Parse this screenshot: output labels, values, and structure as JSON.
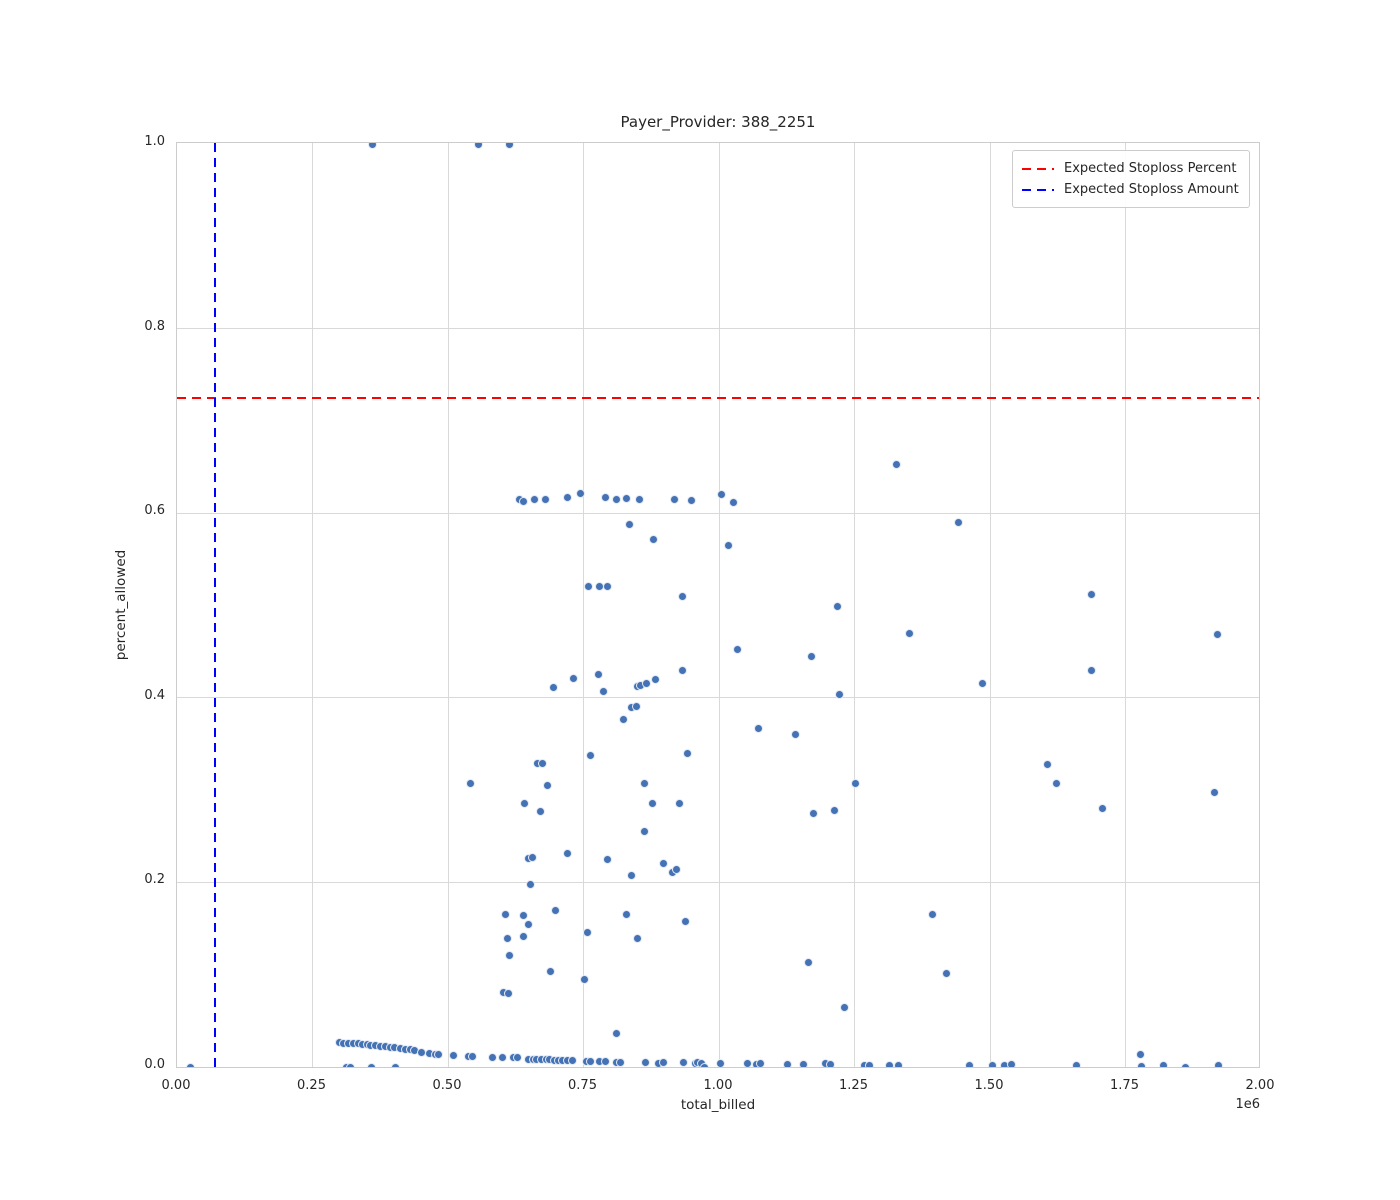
{
  "chart_data": {
    "type": "scatter",
    "title": "Payer_Provider: 388_2251",
    "xlabel": "total_billed",
    "ylabel": "percent_allowed",
    "x_offset_label": "1e6",
    "x_units": "total_billed in units of 1e6",
    "xlim_1e6": [
      0,
      2
    ],
    "ylim": [
      0,
      1
    ],
    "grid": true,
    "x_tick_labels": [
      "0.00",
      "0.25",
      "0.50",
      "0.75",
      "1.00",
      "1.25",
      "1.50",
      "1.75",
      "2.00"
    ],
    "x_tick_values_1e6": [
      0,
      0.25,
      0.5,
      0.75,
      1.0,
      1.25,
      1.5,
      1.75,
      2.0
    ],
    "y_tick_labels": [
      "0.0",
      "0.2",
      "0.4",
      "0.6",
      "0.8",
      "1.0"
    ],
    "y_tick_values": [
      0,
      0.2,
      0.4,
      0.6,
      0.8,
      1.0
    ],
    "style": {
      "point_color": "#4472b4",
      "point_edge_color": "#ffffff",
      "grid_color": "#d9d9d9",
      "spine_color": "#cccccc",
      "text_color": "#262626"
    },
    "legend": {
      "position": "upper right",
      "entries": [
        {
          "label": "Expected Stoploss Percent",
          "color": "#ff0000",
          "style": "dashed"
        },
        {
          "label": "Expected Stoploss Amount",
          "color": "#0000ff",
          "style": "dashed"
        }
      ]
    },
    "reference_lines": [
      {
        "name": "Expected Stoploss Percent",
        "orientation": "horizontal",
        "value": 0.725,
        "color": "#ff0000",
        "style": "dashed"
      },
      {
        "name": "Expected Stoploss Amount",
        "orientation": "vertical",
        "value_1e6": 0.07,
        "color": "#0000ff",
        "style": "dashed"
      }
    ],
    "points": [
      [
        0.36,
        1.0
      ],
      [
        0.557,
        1.0
      ],
      [
        0.614,
        1.0
      ],
      [
        0.631,
        0.615
      ],
      [
        0.64,
        0.613
      ],
      [
        0.659,
        0.615
      ],
      [
        0.679,
        0.615
      ],
      [
        0.721,
        0.617
      ],
      [
        0.745,
        0.621
      ],
      [
        0.791,
        0.617
      ],
      [
        0.811,
        0.615
      ],
      [
        0.83,
        0.616
      ],
      [
        0.854,
        0.615
      ],
      [
        0.917,
        0.615
      ],
      [
        0.95,
        0.614
      ],
      [
        1.004,
        0.62
      ],
      [
        1.026,
        0.612
      ],
      [
        1.328,
        0.653
      ],
      [
        0.834,
        0.588
      ],
      [
        1.441,
        0.59
      ],
      [
        0.88,
        0.572
      ],
      [
        1.018,
        0.565
      ],
      [
        0.76,
        0.521
      ],
      [
        0.78,
        0.521
      ],
      [
        0.795,
        0.521
      ],
      [
        0.933,
        0.51
      ],
      [
        1.688,
        0.512
      ],
      [
        1.218,
        0.499
      ],
      [
        1.351,
        0.47
      ],
      [
        1.919,
        0.469
      ],
      [
        1.035,
        0.452
      ],
      [
        1.17,
        0.445
      ],
      [
        0.933,
        0.43
      ],
      [
        1.688,
        0.43
      ],
      [
        0.777,
        0.425
      ],
      [
        0.732,
        0.421
      ],
      [
        0.694,
        0.411
      ],
      [
        0.849,
        0.412
      ],
      [
        0.856,
        0.413
      ],
      [
        0.867,
        0.416
      ],
      [
        0.882,
        0.42
      ],
      [
        0.786,
        0.407
      ],
      [
        1.223,
        0.404
      ],
      [
        1.487,
        0.416
      ],
      [
        0.839,
        0.389
      ],
      [
        0.847,
        0.391
      ],
      [
        0.823,
        0.377
      ],
      [
        1.072,
        0.367
      ],
      [
        1.142,
        0.36
      ],
      [
        0.941,
        0.34
      ],
      [
        0.762,
        0.337
      ],
      [
        0.666,
        0.329
      ],
      [
        0.675,
        0.329
      ],
      [
        1.607,
        0.328
      ],
      [
        0.684,
        0.305
      ],
      [
        0.862,
        0.307
      ],
      [
        1.251,
        0.307
      ],
      [
        0.541,
        0.307
      ],
      [
        1.622,
        0.307
      ],
      [
        1.914,
        0.297
      ],
      [
        0.642,
        0.286
      ],
      [
        0.878,
        0.286
      ],
      [
        0.928,
        0.285
      ],
      [
        0.67,
        0.277
      ],
      [
        1.175,
        0.275
      ],
      [
        1.214,
        0.278
      ],
      [
        1.708,
        0.28
      ],
      [
        0.862,
        0.255
      ],
      [
        0.649,
        0.226
      ],
      [
        0.655,
        0.227
      ],
      [
        0.721,
        0.231
      ],
      [
        0.795,
        0.225
      ],
      [
        0.898,
        0.221
      ],
      [
        0.915,
        0.211
      ],
      [
        0.922,
        0.214
      ],
      [
        0.838,
        0.208
      ],
      [
        0.653,
        0.198
      ],
      [
        0.699,
        0.17
      ],
      [
        0.607,
        0.165
      ],
      [
        0.64,
        0.164
      ],
      [
        0.83,
        0.165
      ],
      [
        0.939,
        0.158
      ],
      [
        1.393,
        0.165
      ],
      [
        0.649,
        0.154
      ],
      [
        0.758,
        0.146
      ],
      [
        0.609,
        0.139
      ],
      [
        0.64,
        0.141
      ],
      [
        0.849,
        0.139
      ],
      [
        0.613,
        0.121
      ],
      [
        1.166,
        0.113
      ],
      [
        0.69,
        0.104
      ],
      [
        1.419,
        0.101
      ],
      [
        0.751,
        0.095
      ],
      [
        0.603,
        0.081
      ],
      [
        0.611,
        0.08
      ],
      [
        1.231,
        0.064
      ],
      [
        0.81,
        0.036
      ],
      [
        0.299,
        0.027
      ],
      [
        0.308,
        0.026
      ],
      [
        0.317,
        0.026
      ],
      [
        0.326,
        0.025
      ],
      [
        0.334,
        0.025
      ],
      [
        0.342,
        0.024
      ],
      [
        0.351,
        0.024
      ],
      [
        0.357,
        0.023
      ],
      [
        0.366,
        0.023
      ],
      [
        0.375,
        0.022
      ],
      [
        0.384,
        0.022
      ],
      [
        0.393,
        0.021
      ],
      [
        0.402,
        0.021
      ],
      [
        0.412,
        0.02
      ],
      [
        0.421,
        0.019
      ],
      [
        0.43,
        0.019
      ],
      [
        0.439,
        0.018
      ],
      [
        0.452,
        0.016
      ],
      [
        0.465,
        0.015
      ],
      [
        0.477,
        0.014
      ],
      [
        0.483,
        0.014
      ],
      [
        0.511,
        0.012
      ],
      [
        0.537,
        0.011
      ],
      [
        0.546,
        0.011
      ],
      [
        0.583,
        0.01
      ],
      [
        0.601,
        0.01
      ],
      [
        0.62,
        0.01
      ],
      [
        0.629,
        0.01
      ],
      [
        0.649,
        0.008
      ],
      [
        0.657,
        0.008
      ],
      [
        0.664,
        0.008
      ],
      [
        0.672,
        0.008
      ],
      [
        0.681,
        0.008
      ],
      [
        0.688,
        0.008
      ],
      [
        0.696,
        0.007
      ],
      [
        0.704,
        0.007
      ],
      [
        0.712,
        0.007
      ],
      [
        0.721,
        0.007
      ],
      [
        0.73,
        0.007
      ],
      [
        0.755,
        0.006
      ],
      [
        0.762,
        0.006
      ],
      [
        0.78,
        0.006
      ],
      [
        0.79,
        0.006
      ],
      [
        0.81,
        0.005
      ],
      [
        0.819,
        0.005
      ],
      [
        0.865,
        0.005
      ],
      [
        0.889,
        0.004
      ],
      [
        0.898,
        0.005
      ],
      [
        0.935,
        0.005
      ],
      [
        0.956,
        0.004
      ],
      [
        0.961,
        0.005
      ],
      [
        0.967,
        0.004
      ],
      [
        0.974,
        0.0
      ],
      [
        1.002,
        0.004
      ],
      [
        1.053,
        0.004
      ],
      [
        1.07,
        0.003
      ],
      [
        1.077,
        0.004
      ],
      [
        1.127,
        0.003
      ],
      [
        1.155,
        0.003
      ],
      [
        1.197,
        0.004
      ],
      [
        1.205,
        0.003
      ],
      [
        1.269,
        0.002
      ],
      [
        1.277,
        0.002
      ],
      [
        1.314,
        0.002
      ],
      [
        1.332,
        0.002
      ],
      [
        1.462,
        0.002
      ],
      [
        1.504,
        0.002
      ],
      [
        1.526,
        0.002
      ],
      [
        1.539,
        0.003
      ],
      [
        1.659,
        0.002
      ],
      [
        1.777,
        0.014
      ],
      [
        1.779,
        0.001
      ],
      [
        1.821,
        0.002
      ],
      [
        1.861,
        0.0
      ],
      [
        1.921,
        0.002
      ],
      [
        0.024,
        0.0
      ],
      [
        0.312,
        0.0
      ],
      [
        0.321,
        0.0
      ],
      [
        0.358,
        0.0
      ],
      [
        0.404,
        0.0
      ]
    ]
  }
}
